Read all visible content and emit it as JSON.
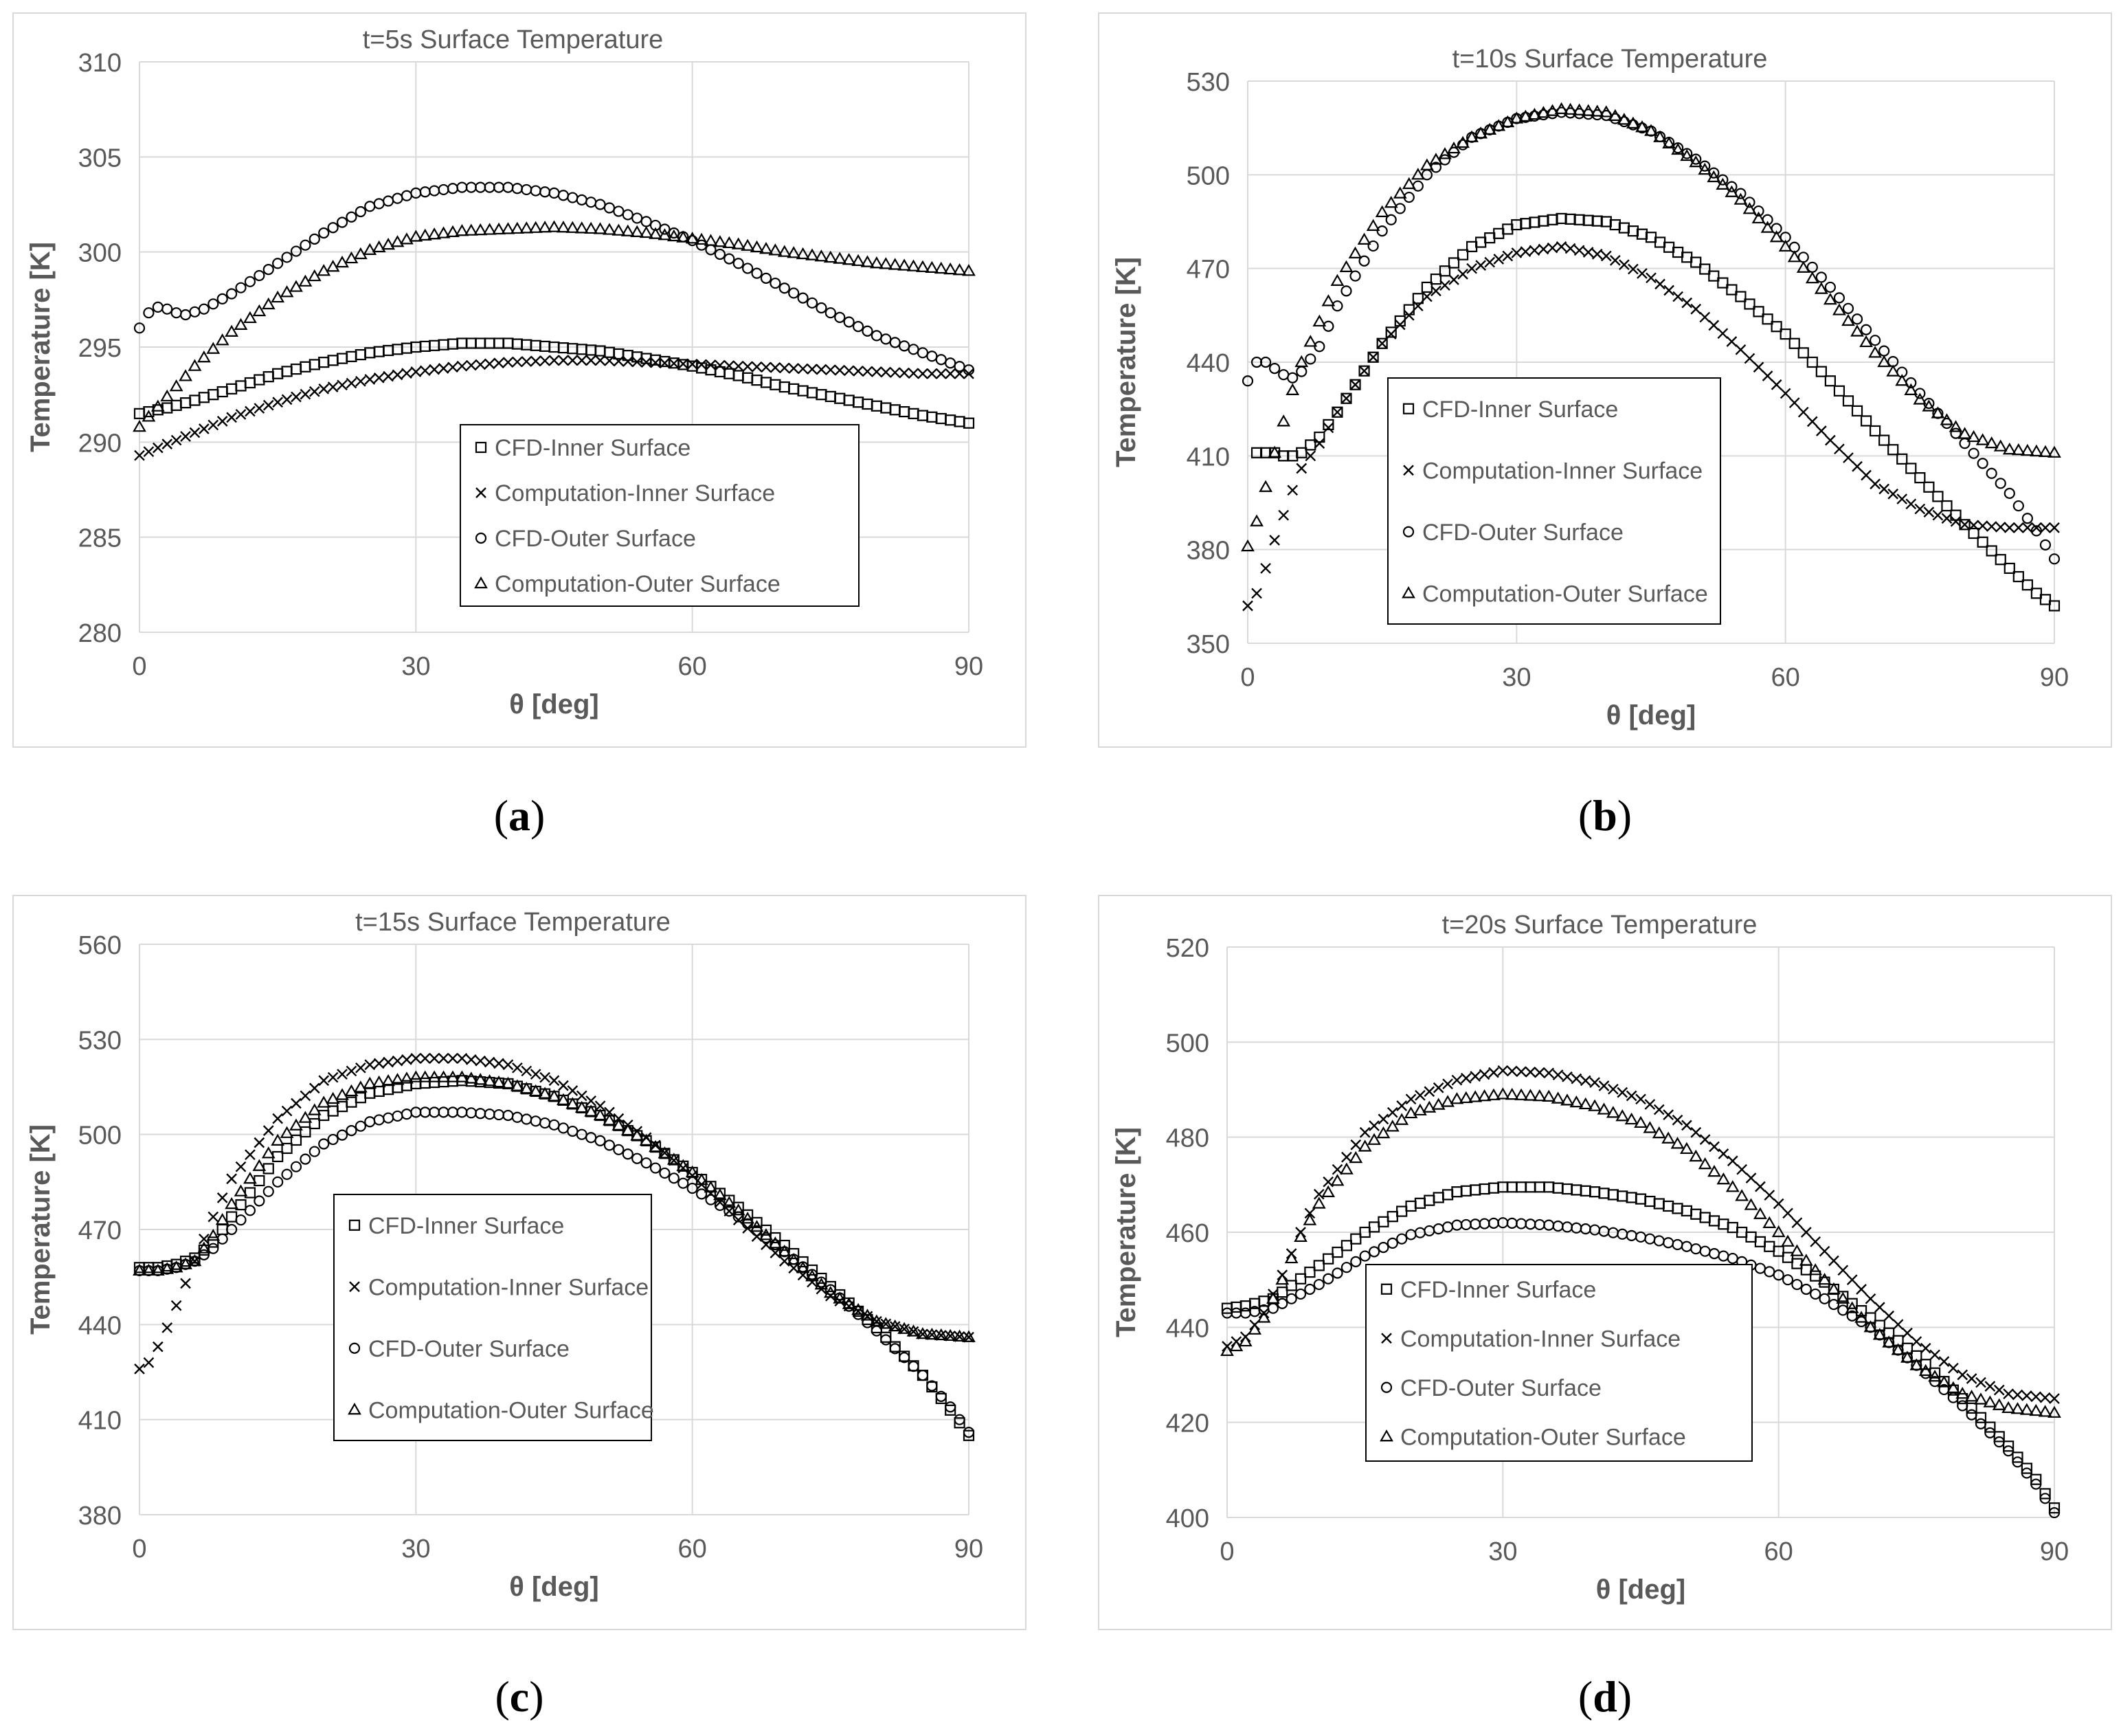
{
  "captions": [
    {
      "open": "(",
      "letter": "a",
      "close": ")"
    },
    {
      "open": "(",
      "letter": "b",
      "close": ")"
    },
    {
      "open": "(",
      "letter": "c",
      "close": ")"
    },
    {
      "open": "(",
      "letter": "d",
      "close": ")"
    }
  ],
  "chart_data": [
    {
      "type": "scatter",
      "title": "t=5s Surface Temperature",
      "xlabel": "θ [deg]",
      "ylabel": "Temperature [K]",
      "xlim": [
        0,
        90
      ],
      "ylim": [
        280,
        310
      ],
      "xticks": [
        "0",
        "30",
        "60",
        "90"
      ],
      "yticks": [
        "280",
        "285",
        "290",
        "295",
        "300",
        "305",
        "310"
      ],
      "legend": [
        "CFD-Inner Surface",
        "Computation-Inner Surface",
        "CFD-Outer Surface",
        "Computation-Outer Surface"
      ],
      "series": [
        {
          "name": "CFD-Inner Surface",
          "marker": "square",
          "x": [
            0,
            3,
            6,
            10,
            15,
            20,
            25,
            30,
            35,
            40,
            45,
            50,
            55,
            60,
            65,
            70,
            75,
            80,
            85,
            90
          ],
          "values": [
            291.5,
            291.8,
            292.2,
            292.8,
            293.6,
            294.2,
            294.7,
            295.0,
            295.2,
            295.2,
            295.0,
            294.8,
            294.4,
            294.0,
            293.5,
            292.9,
            292.4,
            291.9,
            291.4,
            291.0
          ]
        },
        {
          "name": "Computation-Inner Surface",
          "marker": "x",
          "x": [
            0,
            3,
            6,
            10,
            15,
            20,
            25,
            30,
            35,
            40,
            45,
            50,
            55,
            60,
            65,
            70,
            75,
            80,
            85,
            90
          ],
          "values": [
            289.3,
            289.9,
            290.5,
            291.3,
            292.1,
            292.8,
            293.3,
            293.7,
            294.0,
            294.2,
            294.3,
            294.3,
            294.2,
            294.1,
            294.0,
            293.9,
            293.8,
            293.7,
            293.6,
            293.6
          ]
        },
        {
          "name": "CFD-Outer Surface",
          "marker": "circle",
          "x": [
            0,
            1,
            2,
            3,
            4,
            5,
            7,
            10,
            15,
            20,
            25,
            30,
            35,
            40,
            45,
            50,
            55,
            60,
            65,
            70,
            75,
            80,
            85,
            90
          ],
          "values": [
            296.0,
            296.8,
            297.1,
            297.0,
            296.8,
            296.7,
            297.0,
            297.8,
            299.4,
            301.0,
            302.4,
            303.1,
            303.4,
            303.4,
            303.1,
            302.5,
            301.6,
            300.6,
            299.4,
            298.1,
            296.8,
            295.6,
            294.7,
            293.8
          ]
        },
        {
          "name": "Computation-Outer Surface",
          "marker": "triangle",
          "x": [
            0,
            3,
            6,
            10,
            15,
            20,
            25,
            30,
            35,
            40,
            45,
            50,
            55,
            60,
            65,
            70,
            75,
            80,
            85,
            90
          ],
          "values": [
            290.8,
            292.4,
            294.0,
            295.8,
            297.6,
            299.0,
            300.1,
            300.8,
            301.1,
            301.2,
            301.3,
            301.2,
            301.0,
            300.7,
            300.4,
            300.0,
            299.7,
            299.4,
            299.2,
            299.0
          ]
        }
      ]
    },
    {
      "type": "scatter",
      "title": "t=10s Surface Temperature",
      "xlabel": "θ [deg]",
      "ylabel": "Temperature [K]",
      "xlim": [
        0,
        90
      ],
      "ylim": [
        350,
        530
      ],
      "xticks": [
        "0",
        "30",
        "60",
        "90"
      ],
      "yticks": [
        "350",
        "380",
        "410",
        "440",
        "470",
        "500",
        "530"
      ],
      "legend": [
        "CFD-Inner Surface",
        "Computation-Inner Surface",
        "CFD-Outer Surface",
        "Computation-Outer Surface"
      ],
      "series": [
        {
          "name": "CFD-Inner Surface",
          "marker": "square",
          "x": [
            1,
            2,
            3,
            4,
            5,
            6,
            8,
            10,
            15,
            20,
            25,
            30,
            35,
            40,
            45,
            50,
            55,
            60,
            65,
            70,
            75,
            80,
            85,
            88,
            90
          ],
          "values": [
            411,
            411,
            411,
            410,
            410,
            411,
            416,
            424,
            446,
            464,
            477,
            484,
            486,
            485,
            480,
            472,
            461,
            449,
            434,
            418,
            403,
            388,
            374,
            366,
            362
          ]
        },
        {
          "name": "Computation-Inner Surface",
          "marker": "x",
          "x": [
            0,
            1,
            2,
            3,
            4,
            5,
            6,
            8,
            10,
            15,
            20,
            25,
            30,
            35,
            40,
            45,
            50,
            55,
            60,
            65,
            70,
            75,
            80,
            85,
            90
          ],
          "values": [
            362,
            366,
            374,
            383,
            391,
            399,
            406,
            414,
            424,
            446,
            461,
            470,
            475,
            477,
            474,
            467,
            457,
            444,
            430,
            415,
            401,
            393,
            388,
            387,
            387
          ]
        },
        {
          "name": "CFD-Outer Surface",
          "marker": "circle",
          "x": [
            0,
            1,
            2,
            3,
            4,
            5,
            6,
            8,
            10,
            15,
            20,
            25,
            30,
            35,
            40,
            45,
            50,
            55,
            60,
            65,
            70,
            75,
            80,
            85,
            88,
            90
          ],
          "values": [
            434,
            440,
            440,
            438,
            436,
            435,
            437,
            445,
            458,
            482,
            500,
            512,
            518,
            520,
            519,
            514,
            505,
            494,
            480,
            464,
            447,
            430,
            414,
            398,
            386,
            377
          ]
        },
        {
          "name": "Computation-Outer Surface",
          "marker": "triangle",
          "x": [
            0,
            1,
            2,
            3,
            4,
            5,
            6,
            8,
            10,
            15,
            20,
            25,
            30,
            35,
            40,
            45,
            50,
            55,
            60,
            65,
            70,
            75,
            80,
            85,
            90
          ],
          "values": [
            381,
            389,
            400,
            411,
            421,
            431,
            440,
            453,
            466,
            488,
            503,
            512,
            518,
            521,
            520,
            514,
            504,
            492,
            477,
            460,
            443,
            428,
            417,
            412,
            411
          ]
        }
      ]
    },
    {
      "type": "scatter",
      "title": "t=15s Surface Temperature",
      "xlabel": "θ [deg]",
      "ylabel": "Temperature [K]",
      "xlim": [
        0,
        90
      ],
      "ylim": [
        380,
        560
      ],
      "xticks": [
        "0",
        "30",
        "60",
        "90"
      ],
      "yticks": [
        "380",
        "410",
        "440",
        "470",
        "500",
        "530",
        "560"
      ],
      "legend": [
        "CFD-Inner Surface",
        "Computation-Inner Surface",
        "CFD-Outer Surface",
        "Computation-Outer Surface"
      ],
      "series": [
        {
          "name": "CFD-Inner Surface",
          "marker": "square",
          "x": [
            0,
            2,
            4,
            6,
            8,
            10,
            15,
            20,
            25,
            30,
            35,
            40,
            45,
            50,
            55,
            60,
            65,
            70,
            75,
            80,
            85,
            88,
            90
          ],
          "values": [
            458,
            458,
            459,
            461,
            466,
            474,
            493,
            506,
            513,
            516,
            517,
            516,
            512,
            506,
            498,
            488,
            477,
            465,
            452,
            439,
            424,
            413,
            405
          ]
        },
        {
          "name": "Computation-Inner Surface",
          "marker": "x",
          "x": [
            0,
            1,
            2,
            3,
            4,
            5,
            6,
            8,
            10,
            15,
            20,
            25,
            30,
            35,
            40,
            45,
            50,
            55,
            60,
            65,
            70,
            75,
            80,
            85,
            90
          ],
          "values": [
            426,
            428,
            433,
            439,
            446,
            453,
            460,
            474,
            486,
            505,
            517,
            522,
            524,
            524,
            522,
            517,
            509,
            499,
            487,
            473,
            460,
            449,
            441,
            437,
            436
          ]
        },
        {
          "name": "CFD-Outer Surface",
          "marker": "circle",
          "x": [
            0,
            2,
            4,
            6,
            8,
            10,
            15,
            20,
            25,
            30,
            35,
            40,
            45,
            50,
            55,
            60,
            65,
            70,
            75,
            80,
            85,
            88,
            90
          ],
          "values": [
            457,
            457,
            458,
            460,
            464,
            470,
            485,
            497,
            504,
            507,
            507,
            506,
            503,
            498,
            491,
            483,
            474,
            463,
            451,
            438,
            424,
            414,
            406
          ]
        },
        {
          "name": "Computation-Outer Surface",
          "marker": "triangle",
          "x": [
            0,
            2,
            4,
            6,
            8,
            10,
            15,
            20,
            25,
            30,
            35,
            40,
            45,
            50,
            55,
            60,
            65,
            70,
            75,
            80,
            85,
            90
          ],
          "values": [
            457,
            457,
            458,
            460,
            468,
            478,
            498,
            510,
            516,
            518,
            518,
            516,
            512,
            506,
            498,
            488,
            476,
            463,
            450,
            441,
            437,
            436
          ]
        }
      ]
    },
    {
      "type": "scatter",
      "title": "t=20s Surface Temperature",
      "xlabel": "θ [deg]",
      "ylabel": "Temperature [K]",
      "xlim": [
        0,
        90
      ],
      "ylim": [
        400,
        520
      ],
      "xticks": [
        "0",
        "30",
        "60",
        "90"
      ],
      "yticks": [
        "400",
        "420",
        "440",
        "460",
        "480",
        "500",
        "520"
      ],
      "legend": [
        "CFD-Inner Surface",
        "Computation-Inner Surface",
        "CFD-Outer Surface",
        "Computation-Outer Surface"
      ],
      "series": [
        {
          "name": "CFD-Inner Surface",
          "marker": "square",
          "x": [
            0,
            2,
            5,
            10,
            15,
            20,
            25,
            30,
            35,
            40,
            45,
            50,
            55,
            60,
            65,
            70,
            75,
            80,
            85,
            88,
            90
          ],
          "values": [
            444,
            444.5,
            446,
            453,
            460,
            465.5,
            468.5,
            469.5,
            469.5,
            468.5,
            467,
            464.5,
            461,
            456,
            449.5,
            442,
            434,
            425,
            415,
            408,
            402
          ]
        },
        {
          "name": "Computation-Inner Surface",
          "marker": "x",
          "x": [
            0,
            2,
            4,
            6,
            8,
            10,
            15,
            20,
            25,
            30,
            35,
            40,
            45,
            50,
            55,
            60,
            65,
            70,
            75,
            80,
            85,
            90
          ],
          "values": [
            436,
            438,
            443,
            451,
            460,
            468,
            481,
            488,
            492,
            494,
            493.5,
            491.5,
            488,
            482.5,
            475,
            466,
            456,
            446,
            437,
            430,
            426,
            425
          ]
        },
        {
          "name": "CFD-Outer Surface",
          "marker": "circle",
          "x": [
            0,
            2,
            5,
            10,
            15,
            20,
            25,
            30,
            35,
            40,
            45,
            50,
            55,
            60,
            65,
            70,
            75,
            80,
            85,
            88,
            90
          ],
          "values": [
            443,
            443,
            444,
            449,
            455,
            459.5,
            461.5,
            462,
            461.5,
            460.5,
            459,
            457,
            454.5,
            451,
            446,
            440,
            432,
            423.5,
            414,
            407,
            401
          ]
        },
        {
          "name": "Computation-Outer Surface",
          "marker": "triangle",
          "x": [
            0,
            2,
            4,
            6,
            8,
            10,
            15,
            20,
            25,
            30,
            35,
            40,
            45,
            50,
            55,
            60,
            65,
            70,
            75,
            80,
            85,
            90
          ],
          "values": [
            435,
            437,
            442,
            450,
            459,
            466,
            478,
            485,
            488,
            489,
            488.5,
            486.5,
            483,
            477.5,
            469.5,
            460,
            450,
            440,
            432,
            426,
            423,
            422
          ]
        }
      ]
    }
  ]
}
